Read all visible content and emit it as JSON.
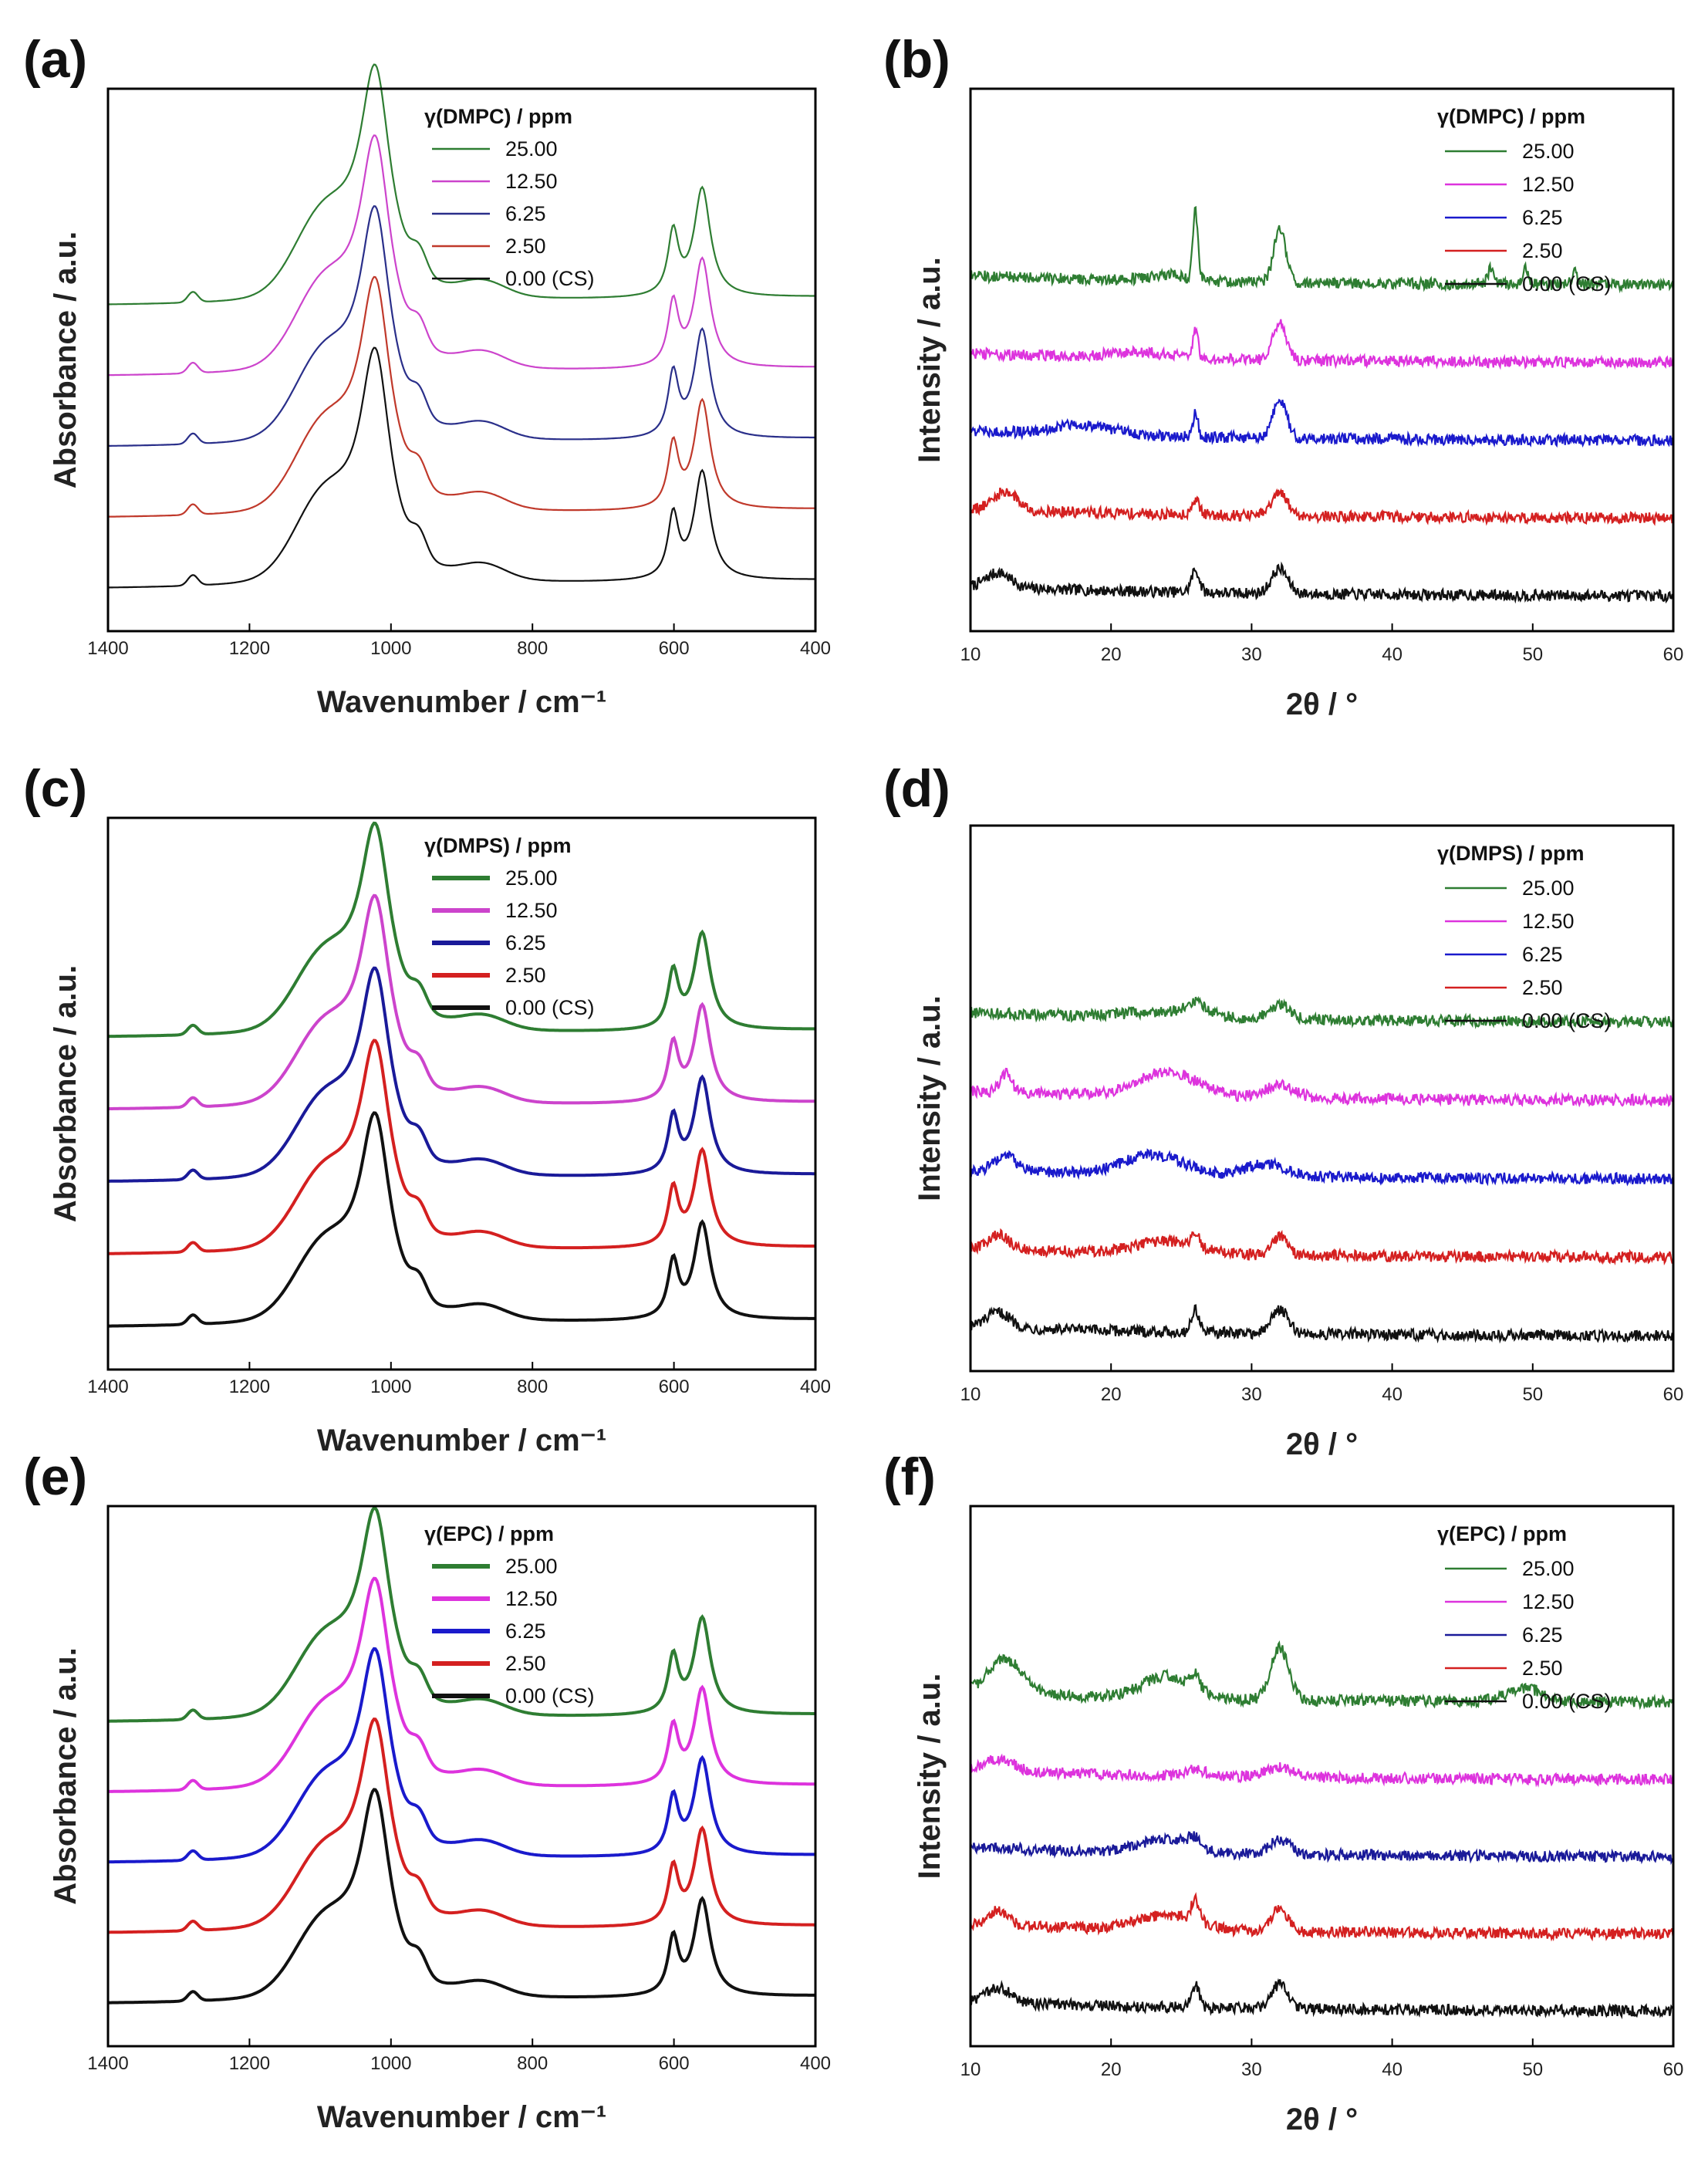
{
  "chart_data": [
    {
      "panel": "(a)",
      "type": "line",
      "technique": "FTIR",
      "xlabel": "Wavenumber / cm⁻¹",
      "ylabel": "Absorbance / a.u.",
      "xlim": [
        1400,
        400
      ],
      "x_ticks": [
        "1400",
        "1200",
        "1000",
        "800",
        "600",
        "400"
      ],
      "legend_title": "γ(DMPC) / ppm",
      "legend_position": "top-center",
      "series": [
        {
          "name": "25.00",
          "color": "#2e7d32",
          "offset": 4
        },
        {
          "name": "12.50",
          "color": "#cc44cc",
          "offset": 3
        },
        {
          "name": "6.25",
          "color": "#2a2f8a",
          "offset": 2
        },
        {
          "name": "2.50",
          "color": "#c0392b",
          "offset": 1
        },
        {
          "name": "0.00 (CS)",
          "color": "#111111",
          "offset": 0
        }
      ],
      "peak_positions_cm-1": [
        1280,
        1020,
        960,
        860,
        600,
        560
      ]
    },
    {
      "panel": "(b)",
      "type": "line",
      "technique": "XRD",
      "xlabel": "2θ / °",
      "ylabel": "Intensity / a.u.",
      "xlim": [
        10,
        60
      ],
      "x_ticks": [
        "10",
        "20",
        "30",
        "40",
        "50",
        "60"
      ],
      "legend_title": "γ(DMPC) / ppm",
      "legend_position": "top-right",
      "series": [
        {
          "name": "25.00",
          "color": "#2e7d32",
          "offset": 4
        },
        {
          "name": "12.50",
          "color": "#dd33dd",
          "offset": 3
        },
        {
          "name": "6.25",
          "color": "#1a1acc",
          "offset": 2
        },
        {
          "name": "2.50",
          "color": "#d42020",
          "offset": 1
        },
        {
          "name": "0.00 (CS)",
          "color": "#111111",
          "offset": 0
        }
      ],
      "peak_positions_2theta": [
        26,
        32,
        47,
        49.5,
        53
      ]
    },
    {
      "panel": "(c)",
      "type": "line",
      "technique": "FTIR",
      "xlabel": "Wavenumber / cm⁻¹",
      "ylabel": "Absorbance / a.u.",
      "xlim": [
        1400,
        400
      ],
      "x_ticks": [
        "1400",
        "1200",
        "1000",
        "800",
        "600",
        "400"
      ],
      "legend_title": "γ(DMPS) / ppm",
      "legend_position": "top-center",
      "series": [
        {
          "name": "25.00",
          "color": "#2e7d32",
          "offset": 4
        },
        {
          "name": "12.50",
          "color": "#cc44cc",
          "offset": 3
        },
        {
          "name": "6.25",
          "color": "#1a1a99",
          "offset": 2
        },
        {
          "name": "2.50",
          "color": "#d42020",
          "offset": 1
        },
        {
          "name": "0.00 (CS)",
          "color": "#111111",
          "offset": 0
        }
      ],
      "peak_positions_cm-1": [
        1280,
        1020,
        960,
        860,
        600,
        560
      ]
    },
    {
      "panel": "(d)",
      "type": "line",
      "technique": "XRD",
      "xlabel": "2θ / °",
      "ylabel": "Intensity / a.u.",
      "xlim": [
        10,
        60
      ],
      "x_ticks": [
        "10",
        "20",
        "30",
        "40",
        "50",
        "60"
      ],
      "legend_title": "γ(DMPS) / ppm",
      "legend_position": "top-right",
      "series": [
        {
          "name": "25.00",
          "color": "#2e7d32",
          "offset": 4
        },
        {
          "name": "12.50",
          "color": "#dd33dd",
          "offset": 3
        },
        {
          "name": "6.25",
          "color": "#1a1acc",
          "offset": 2
        },
        {
          "name": "2.50",
          "color": "#d42020",
          "offset": 1
        },
        {
          "name": "0.00 (CS)",
          "color": "#111111",
          "offset": 0
        }
      ],
      "peak_positions_2theta": [
        24,
        26,
        32
      ]
    },
    {
      "panel": "(e)",
      "type": "line",
      "technique": "FTIR",
      "xlabel": "Wavenumber / cm⁻¹",
      "ylabel": "Absorbance / a.u.",
      "xlim": [
        1400,
        400
      ],
      "x_ticks": [
        "1400",
        "1200",
        "1000",
        "800",
        "600",
        "400"
      ],
      "legend_title": "γ(EPC) / ppm",
      "legend_position": "top-center",
      "series": [
        {
          "name": "25.00",
          "color": "#2e7d32",
          "offset": 4
        },
        {
          "name": "12.50",
          "color": "#dd33dd",
          "offset": 3
        },
        {
          "name": "6.25",
          "color": "#1a1acc",
          "offset": 2
        },
        {
          "name": "2.50",
          "color": "#d42020",
          "offset": 1
        },
        {
          "name": "0.00 (CS)",
          "color": "#111111",
          "offset": 0
        }
      ],
      "peak_positions_cm-1": [
        1280,
        1020,
        960,
        860,
        600,
        560
      ]
    },
    {
      "panel": "(f)",
      "type": "line",
      "technique": "XRD",
      "xlabel": "2θ / °",
      "ylabel": "Intensity / a.u.",
      "xlim": [
        10,
        60
      ],
      "x_ticks": [
        "10",
        "20",
        "30",
        "40",
        "50",
        "60"
      ],
      "legend_title": "γ(EPC) / ppm",
      "legend_position": "top-right",
      "series": [
        {
          "name": "25.00",
          "color": "#2e7d32",
          "offset": 4
        },
        {
          "name": "12.50",
          "color": "#dd33dd",
          "offset": 3
        },
        {
          "name": "6.25",
          "color": "#1a1a99",
          "offset": 2
        },
        {
          "name": "2.50",
          "color": "#d42020",
          "offset": 1
        },
        {
          "name": "0.00 (CS)",
          "color": "#111111",
          "offset": 0
        }
      ],
      "peak_positions_2theta": [
        12.5,
        24,
        26,
        32
      ]
    }
  ]
}
